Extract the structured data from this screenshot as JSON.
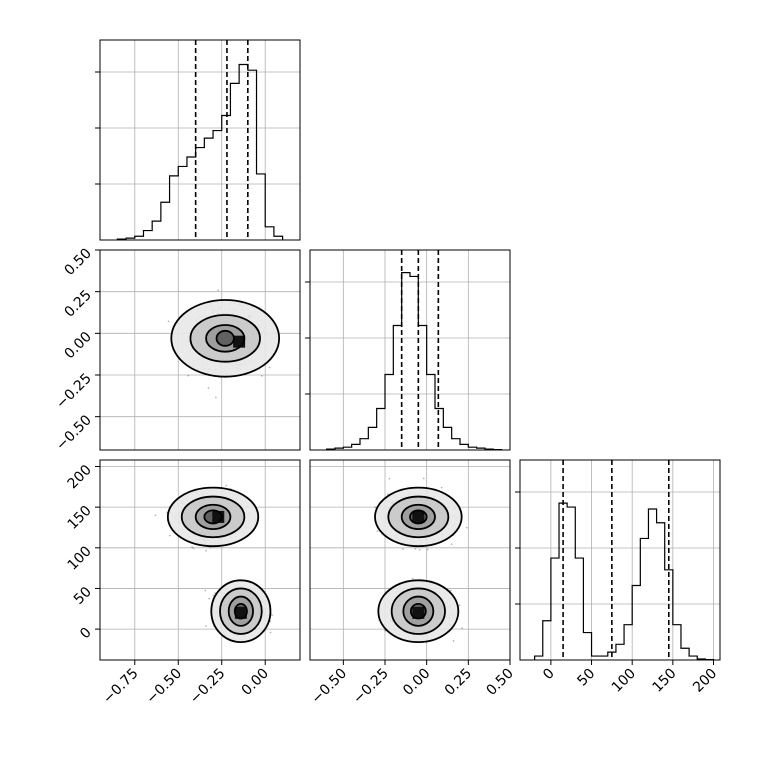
{
  "chart_data": {
    "type": "corner",
    "title": "",
    "colors": {
      "line": "#000000",
      "grid": "#b0b0b0",
      "background": "#ffffff"
    },
    "grid": true,
    "parameters": [
      {
        "index": 0,
        "xlim": [
          -0.95,
          0.2
        ],
        "ticks": [
          -0.75,
          -0.5,
          -0.25,
          0.0
        ],
        "tick_labels": [
          "−0.75",
          "−0.50",
          "−0.25",
          "0.00"
        ],
        "quantiles": [
          -0.4,
          -0.22,
          -0.1
        ]
      },
      {
        "index": 1,
        "xlim": [
          -0.7,
          0.5
        ],
        "ticks": [
          -0.5,
          -0.25,
          0.0,
          0.25,
          0.5
        ],
        "tick_labels": [
          "−0.50",
          "−0.25",
          "0.00",
          "0.25",
          "0.50"
        ],
        "quantiles": [
          -0.15,
          -0.05,
          0.07
        ]
      },
      {
        "index": 2,
        "xlim": [
          -38,
          208
        ],
        "ticks": [
          0,
          50,
          100,
          150,
          200
        ],
        "tick_labels": [
          "0",
          "50",
          "100",
          "150",
          "200"
        ],
        "quantiles": [
          15,
          75,
          145
        ]
      }
    ],
    "histograms": [
      {
        "param": 0,
        "ymax": 1.06,
        "bin_edges": [
          -0.85,
          -0.8,
          -0.75,
          -0.7,
          -0.65,
          -0.6,
          -0.55,
          -0.5,
          -0.45,
          -0.4,
          -0.35,
          -0.3,
          -0.25,
          -0.2,
          -0.15,
          -0.1,
          -0.05,
          0.0,
          0.05,
          0.1
        ],
        "counts": [
          0.005,
          0.01,
          0.02,
          0.05,
          0.1,
          0.2,
          0.34,
          0.39,
          0.44,
          0.49,
          0.54,
          0.58,
          0.66,
          0.83,
          0.93,
          0.9,
          0.35,
          0.07,
          0.02
        ]
      },
      {
        "param": 1,
        "ymax": 1.06,
        "bin_edges": [
          -0.6,
          -0.55,
          -0.5,
          -0.45,
          -0.4,
          -0.35,
          -0.3,
          -0.25,
          -0.2,
          -0.15,
          -0.1,
          -0.05,
          0.0,
          0.05,
          0.1,
          0.15,
          0.2,
          0.25,
          0.3,
          0.35,
          0.4,
          0.45
        ],
        "counts": [
          0.005,
          0.01,
          0.015,
          0.03,
          0.06,
          0.12,
          0.22,
          0.4,
          0.66,
          0.94,
          0.92,
          0.66,
          0.4,
          0.22,
          0.12,
          0.06,
          0.03,
          0.015,
          0.01,
          0.005,
          0.002
        ]
      },
      {
        "param": 2,
        "ymax": 1.02,
        "bin_edges": [
          -20,
          -10,
          0,
          10,
          20,
          30,
          40,
          50,
          60,
          70,
          80,
          90,
          100,
          110,
          120,
          130,
          140,
          150,
          160,
          170,
          180,
          190,
          200
        ],
        "counts": [
          0.02,
          0.2,
          0.52,
          0.8,
          0.78,
          0.52,
          0.14,
          0.02,
          0.02,
          0.04,
          0.08,
          0.18,
          0.38,
          0.62,
          0.77,
          0.7,
          0.46,
          0.18,
          0.06,
          0.02,
          0.005,
          0.002
        ]
      }
    ],
    "scatter_panels": [
      {
        "xparam": 0,
        "yparam": 1,
        "clusters": [
          {
            "center": [
              -0.23,
              -0.03
            ],
            "spread": [
              0.17,
              0.16
            ],
            "contours": [
              [
                0.31,
                0.23
              ],
              [
                0.2,
                0.14
              ],
              [
                0.11,
                0.08
              ],
              [
                0.05,
                0.045
              ]
            ],
            "peak": [
              -0.15,
              -0.05
            ]
          }
        ]
      },
      {
        "xparam": 0,
        "yparam": 2,
        "clusters": [
          {
            "center": [
              -0.3,
              138
            ],
            "spread": [
              0.16,
              24
            ],
            "contours": [
              [
                0.26,
                36
              ],
              [
                0.18,
                25
              ],
              [
                0.1,
                15
              ],
              [
                0.05,
                8
              ]
            ],
            "peak": [
              -0.27,
              138
            ]
          },
          {
            "center": [
              -0.14,
              22
            ],
            "spread": [
              0.11,
              22
            ],
            "contours": [
              [
                0.17,
                38
              ],
              [
                0.12,
                28
              ],
              [
                0.07,
                18
              ],
              [
                0.035,
                9
              ]
            ],
            "peak": [
              -0.14,
              20
            ]
          }
        ]
      },
      {
        "xparam": 1,
        "yparam": 2,
        "clusters": [
          {
            "center": [
              -0.05,
              138
            ],
            "spread": [
              0.16,
              24
            ],
            "contours": [
              [
                0.26,
                36
              ],
              [
                0.18,
                25
              ],
              [
                0.1,
                15
              ],
              [
                0.05,
                8
              ]
            ],
            "peak": [
              -0.05,
              138
            ]
          },
          {
            "center": [
              -0.05,
              22
            ],
            "spread": [
              0.15,
              22
            ],
            "contours": [
              [
                0.24,
                38
              ],
              [
                0.16,
                28
              ],
              [
                0.09,
                18
              ],
              [
                0.045,
                9
              ]
            ],
            "peak": [
              -0.05,
              20
            ]
          }
        ]
      }
    ]
  }
}
